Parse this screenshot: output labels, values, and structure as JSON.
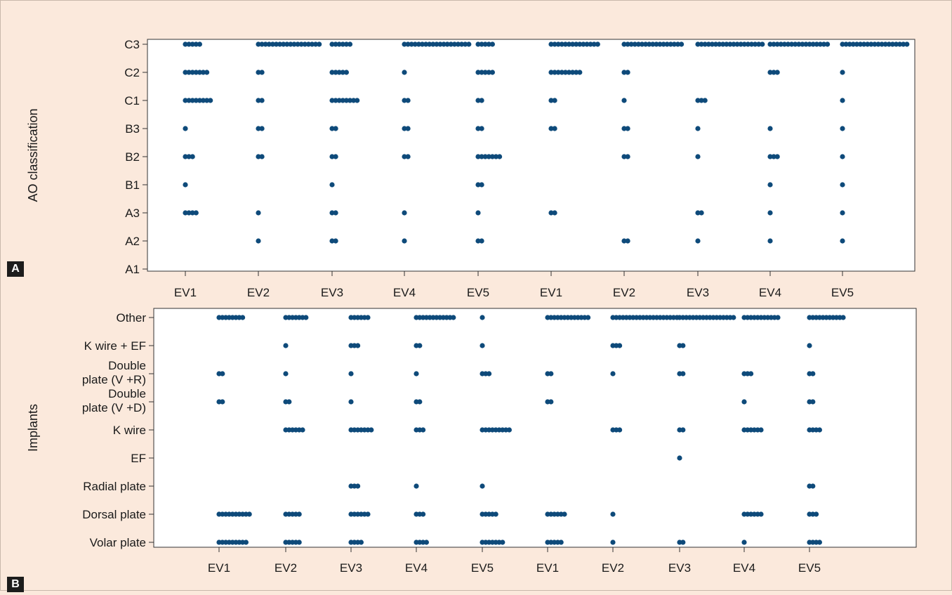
{
  "colors": {
    "background": "#fbe9dc",
    "plot_area": "#ffffff",
    "dot": "#0e4a7a",
    "axis": "#333333"
  },
  "panels": {
    "a": {
      "tag": "A"
    },
    "b": {
      "tag": "B"
    }
  },
  "chart_data": [
    {
      "type": "scatter",
      "title": "",
      "ylabel": "AO classification",
      "xlabel": "",
      "categories": [
        "EV1",
        "EV2",
        "EV3",
        "EV4",
        "EV5",
        "EV1",
        "EV2",
        "EV3",
        "EV4",
        "EV5"
      ],
      "y_categories": [
        "A1",
        "A2",
        "A3",
        "B1",
        "B2",
        "B3",
        "C1",
        "C2",
        "C3"
      ],
      "counts_by_category": {
        "C3": [
          5,
          18,
          6,
          19,
          5,
          14,
          17,
          19,
          17,
          19
        ],
        "C2": [
          7,
          2,
          5,
          1,
          5,
          9,
          2,
          0,
          3,
          1
        ],
        "C1": [
          8,
          2,
          8,
          2,
          2,
          2,
          1,
          3,
          0,
          1
        ],
        "B3": [
          1,
          2,
          2,
          2,
          2,
          2,
          2,
          1,
          1,
          1
        ],
        "B2": [
          3,
          2,
          2,
          2,
          7,
          0,
          2,
          1,
          3,
          1
        ],
        "B1": [
          1,
          0,
          1,
          0,
          2,
          0,
          0,
          0,
          1,
          1
        ],
        "A3": [
          4,
          1,
          2,
          1,
          1,
          2,
          0,
          2,
          1,
          1
        ],
        "A2": [
          0,
          1,
          2,
          1,
          2,
          0,
          2,
          1,
          1,
          1
        ],
        "A1": [
          0,
          0,
          0,
          0,
          0,
          0,
          0,
          0,
          0,
          0
        ]
      },
      "grid": false,
      "legend": "none"
    },
    {
      "type": "scatter",
      "title": "",
      "ylabel": "Implants",
      "xlabel": "",
      "categories": [
        "EV1",
        "EV2",
        "EV3",
        "EV4",
        "EV5",
        "EV1",
        "EV2",
        "EV3",
        "EV4",
        "EV5"
      ],
      "y_categories": [
        "Volar plate",
        "Dorsal plate",
        "Radial plate",
        "EF",
        "K wire",
        "Double plate (V +D)",
        "Double plate (V +R)",
        "K wire + EF",
        "Other"
      ],
      "y_tick_lines": [
        [
          "Volar plate"
        ],
        [
          "Dorsal plate"
        ],
        [
          "Radial plate"
        ],
        [
          "EF"
        ],
        [
          "K wire"
        ],
        [
          "Double",
          "plate (V +D)"
        ],
        [
          "Double",
          "plate (V +R)"
        ],
        [
          "K wire + EF"
        ],
        [
          "Other"
        ]
      ],
      "counts_by_category": {
        "Other": [
          8,
          7,
          6,
          12,
          1,
          13,
          20,
          17,
          11,
          11
        ],
        "K wire + EF": [
          0,
          1,
          3,
          2,
          1,
          0,
          3,
          2,
          0,
          1
        ],
        "Double plate (V +R)": [
          2,
          1,
          1,
          1,
          3,
          2,
          1,
          2,
          3,
          2
        ],
        "Double plate (V +D)": [
          2,
          2,
          1,
          2,
          0,
          2,
          0,
          0,
          1,
          2
        ],
        "K wire": [
          0,
          6,
          7,
          3,
          9,
          0,
          3,
          2,
          6,
          4
        ],
        "EF": [
          0,
          0,
          0,
          0,
          0,
          0,
          0,
          1,
          0,
          0
        ],
        "Radial plate": [
          0,
          0,
          3,
          1,
          1,
          0,
          0,
          0,
          0,
          2
        ],
        "Dorsal plate": [
          10,
          5,
          6,
          3,
          5,
          6,
          1,
          0,
          6,
          3
        ],
        "Volar plate": [
          9,
          5,
          4,
          4,
          7,
          5,
          1,
          2,
          1,
          4
        ]
      },
      "grid": false,
      "legend": "none"
    }
  ]
}
